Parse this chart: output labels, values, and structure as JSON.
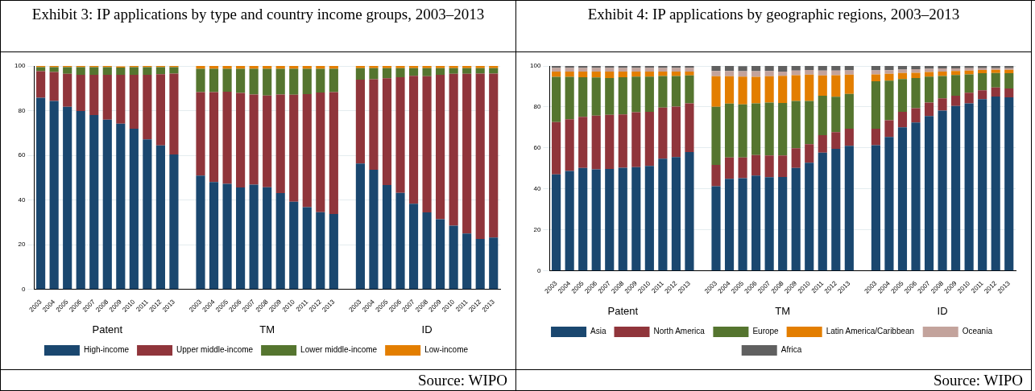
{
  "chart_data": [
    {
      "type": "bar",
      "title": "Exhibit 3: IP applications by type and country income groups, 2003–2013",
      "stacked": true,
      "legend": "bottom",
      "grid": "y",
      "ylim": [
        0,
        100
      ],
      "yticks": [
        0,
        20,
        40,
        60,
        80,
        100
      ],
      "categories": [
        "2003",
        "2004",
        "2005",
        "2006",
        "2007",
        "2008",
        "2009",
        "2010",
        "2011",
        "2012",
        "2013",
        null,
        "2003",
        "2004",
        "2005",
        "2006",
        "2007",
        "2008",
        "2009",
        "2010",
        "2011",
        "2012",
        "2013",
        null,
        "2003",
        "2004",
        "2005",
        "2006",
        "2007",
        "2008",
        "2009",
        "2010",
        "2011",
        "2012",
        "2013"
      ],
      "annotations": [
        "Patent",
        "TM",
        "ID",
        "Source: WIPO"
      ],
      "series": [
        {
          "name": "High-income",
          "color": "#1a476f",
          "values": [
            85.8,
            84.3,
            81.7,
            79.8,
            78.0,
            76.0,
            74.2,
            71.9,
            67.1,
            64.4,
            60.4,
            null,
            50.9,
            48.0,
            47.2,
            45.6,
            46.9,
            45.7,
            43.1,
            39.2,
            36.8,
            34.5,
            33.7,
            null,
            56.3,
            53.5,
            46.7,
            43.2,
            38.3,
            34.4,
            31.4,
            28.5,
            25.0,
            22.6,
            23.2
          ]
        },
        {
          "name": "Upper middle-income",
          "color": "#90353b",
          "values": [
            11.9,
            13.0,
            14.8,
            16.2,
            18.0,
            20.0,
            21.8,
            24.1,
            28.9,
            31.9,
            36.2,
            null,
            37.4,
            40.3,
            41.3,
            42.3,
            40.3,
            41.1,
            44.1,
            47.9,
            50.6,
            53.6,
            54.6,
            null,
            37.6,
            40.6,
            47.8,
            51.8,
            57.3,
            61.0,
            64.6,
            68.0,
            71.5,
            74.0,
            73.4
          ]
        },
        {
          "name": "Lower middle-income",
          "color": "#55752f",
          "values": [
            1.8,
            2.2,
            3.0,
            3.5,
            3.5,
            3.5,
            3.3,
            3.5,
            3.5,
            3.2,
            2.9,
            null,
            10.4,
            10.4,
            10.2,
            10.8,
            11.5,
            11.9,
            11.5,
            11.6,
            11.3,
            10.6,
            10.4,
            null,
            5.1,
            4.9,
            4.5,
            4.0,
            3.4,
            3.6,
            3.0,
            2.5,
            2.5,
            2.4,
            2.4
          ]
        },
        {
          "name": "Low-income",
          "color": "#e37e00",
          "values": [
            0.5,
            0.5,
            0.5,
            0.5,
            0.5,
            0.5,
            0.5,
            0.5,
            0.5,
            0.5,
            0.5,
            null,
            1.3,
            1.3,
            1.3,
            1.3,
            1.3,
            1.3,
            1.3,
            1.3,
            1.3,
            1.3,
            1.3,
            null,
            1.0,
            1.0,
            1.0,
            1.0,
            1.0,
            1.0,
            1.0,
            1.0,
            1.0,
            1.0,
            1.0
          ]
        }
      ]
    },
    {
      "type": "bar",
      "title": "Exhibit 4: IP applications by geographic regions, 2003–2013",
      "stacked": true,
      "legend": "bottom",
      "grid": "y",
      "ylim": [
        0,
        100
      ],
      "yticks": [
        0,
        20,
        40,
        60,
        80,
        100
      ],
      "categories": [
        "2003",
        "2004",
        "2005",
        "2006",
        "2007",
        "2008",
        "2009",
        "2010",
        "2011",
        "2012",
        "2013",
        null,
        "2003",
        "2004",
        "2005",
        "2006",
        "2007",
        "2008",
        "2009",
        "2010",
        "2011",
        "2012",
        "2013",
        null,
        "2003",
        "2004",
        "2005",
        "2006",
        "2007",
        "2008",
        "2009",
        "2010",
        "2011",
        "2012",
        "2013"
      ],
      "annotations": [
        "Patent",
        "TM",
        "ID",
        "Source: WIPO"
      ],
      "series": [
        {
          "name": "Asia",
          "color": "#1a476f",
          "values": [
            47.1,
            48.7,
            50.2,
            49.5,
            49.7,
            50.3,
            50.6,
            51.2,
            54.7,
            55.5,
            58.0,
            null,
            41.3,
            44.9,
            45.2,
            46.5,
            45.7,
            45.8,
            50.2,
            52.8,
            57.7,
            59.5,
            61.0,
            null,
            61.3,
            65.3,
            70.1,
            72.4,
            75.6,
            78.2,
            80.5,
            81.7,
            83.8,
            85.1,
            84.7
          ]
        },
        {
          "name": "North America",
          "color": "#90353b",
          "values": [
            25.5,
            25.3,
            25.0,
            26.2,
            26.4,
            26.0,
            26.8,
            26.4,
            25.0,
            24.7,
            23.7,
            null,
            10.4,
            10.4,
            10.1,
            10.0,
            10.6,
            10.5,
            9.6,
            9.0,
            8.5,
            8.2,
            8.4,
            null,
            8.1,
            8.2,
            7.5,
            7.0,
            6.5,
            6.0,
            5.0,
            5.2,
            4.3,
            4.4,
            4.3
          ]
        },
        {
          "name": "Europe",
          "color": "#55752f",
          "values": [
            22.1,
            20.7,
            19.3,
            18.7,
            18.0,
            18.2,
            17.4,
            17.2,
            15.4,
            14.9,
            13.7,
            null,
            28.4,
            26.3,
            25.9,
            25.2,
            25.8,
            25.6,
            23.1,
            21.1,
            19.3,
            17.3,
            17.0,
            null,
            23.1,
            19.3,
            16.0,
            14.7,
            12.7,
            10.9,
            10.1,
            9.0,
            8.4,
            7.1,
            7.5
          ]
        },
        {
          "name": "Latin America/Caribbean",
          "color": "#e37e00",
          "values": [
            2.6,
            2.6,
            2.8,
            2.9,
            3.2,
            2.8,
            2.5,
            2.5,
            2.2,
            2.2,
            1.9,
            null,
            14.9,
            13.4,
            13.6,
            13.0,
            12.9,
            13.3,
            12.6,
            12.9,
            9.9,
            10.5,
            9.4,
            null,
            3.4,
            3.4,
            3.0,
            2.6,
            2.3,
            2.2,
            1.9,
            1.8,
            1.5,
            1.5,
            1.6
          ]
        },
        {
          "name": "Oceania",
          "color": "#c3a39c",
          "values": [
            1.7,
            1.7,
            1.7,
            1.7,
            1.7,
            1.7,
            1.7,
            1.7,
            1.7,
            1.7,
            1.7,
            null,
            2.5,
            2.5,
            2.6,
            2.7,
            2.5,
            2.1,
            2.2,
            2.2,
            2.3,
            2.2,
            2.0,
            null,
            1.9,
            1.7,
            1.6,
            1.7,
            1.5,
            1.5,
            1.3,
            1.2,
            0.9,
            0.8,
            0.8
          ]
        },
        {
          "name": "Africa",
          "color": "#606060",
          "values": [
            1.0,
            1.0,
            1.0,
            1.0,
            1.0,
            1.0,
            1.0,
            1.0,
            1.0,
            1.0,
            1.0,
            null,
            2.5,
            2.5,
            2.5,
            2.6,
            2.6,
            2.9,
            2.3,
            2.0,
            2.3,
            2.3,
            2.2,
            null,
            2.2,
            2.1,
            1.8,
            1.6,
            1.4,
            1.2,
            1.2,
            1.1,
            1.1,
            1.1,
            1.1
          ]
        }
      ]
    }
  ]
}
